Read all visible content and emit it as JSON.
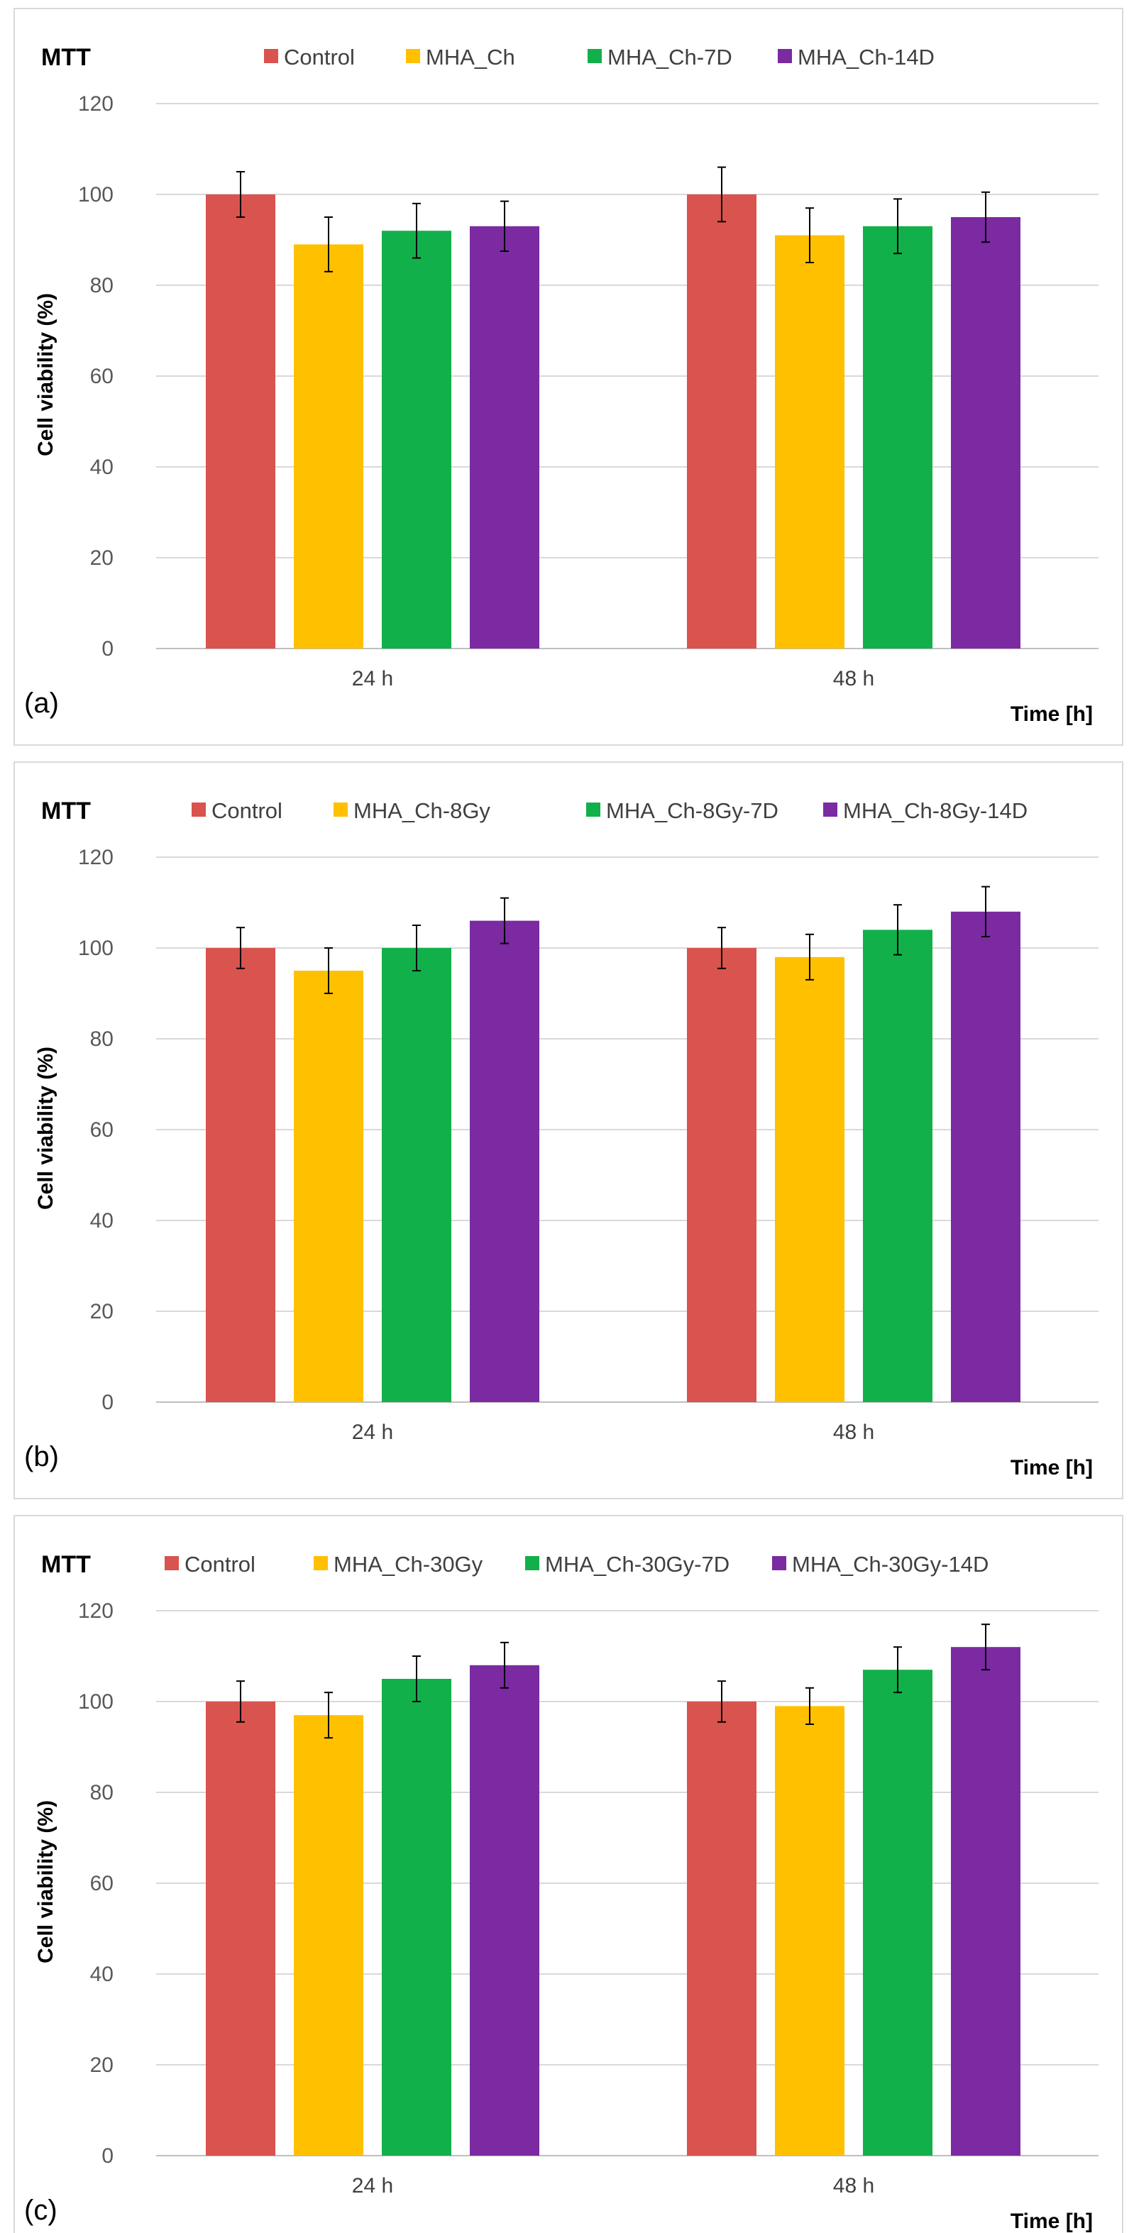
{
  "colors": [
    "#d9534f",
    "#ffc000",
    "#12b04a",
    "#7b2aa2"
  ],
  "chart_data": [
    {
      "type": "bar",
      "panel_label": "(a)",
      "title": "MTT",
      "xlabel": "Time [h]",
      "ylabel": "Cell viability (%)",
      "ylim": [
        0,
        120
      ],
      "yticks": [
        0,
        20,
        40,
        60,
        80,
        100,
        120
      ],
      "grid": true,
      "legend_position": "top",
      "categories": [
        "24 h",
        "48 h"
      ],
      "series": [
        {
          "name": "Control",
          "values": [
            100,
            100
          ],
          "errors": [
            5,
            6
          ]
        },
        {
          "name": "MHA_Ch",
          "values": [
            89,
            91
          ],
          "errors": [
            6,
            6
          ]
        },
        {
          "name": "MHA_Ch-7D",
          "values": [
            92,
            93
          ],
          "errors": [
            6,
            6
          ]
        },
        {
          "name": "MHA_Ch-14D",
          "values": [
            93,
            95
          ],
          "errors": [
            5.5,
            5.5
          ]
        }
      ]
    },
    {
      "type": "bar",
      "panel_label": "(b)",
      "title": "MTT",
      "xlabel": "Time [h]",
      "ylabel": "Cell viability (%)",
      "ylim": [
        0,
        120
      ],
      "yticks": [
        0,
        20,
        40,
        60,
        80,
        100,
        120
      ],
      "grid": true,
      "legend_position": "top",
      "categories": [
        "24 h",
        "48 h"
      ],
      "series": [
        {
          "name": "Control",
          "values": [
            100,
            100
          ],
          "errors": [
            4.5,
            4.5
          ]
        },
        {
          "name": "MHA_Ch-8Gy",
          "values": [
            95,
            98
          ],
          "errors": [
            5,
            5
          ]
        },
        {
          "name": "MHA_Ch-8Gy-7D",
          "values": [
            100,
            104
          ],
          "errors": [
            5,
            5.5
          ]
        },
        {
          "name": "MHA_Ch-8Gy-14D",
          "values": [
            106,
            108
          ],
          "errors": [
            5,
            5.5
          ]
        }
      ]
    },
    {
      "type": "bar",
      "panel_label": "(c)",
      "title": "MTT",
      "xlabel": "Time [h]",
      "ylabel": "Cell viability (%)",
      "ylim": [
        0,
        120
      ],
      "yticks": [
        0,
        20,
        40,
        60,
        80,
        100,
        120
      ],
      "grid": true,
      "legend_position": "top",
      "categories": [
        "24 h",
        "48 h"
      ],
      "series": [
        {
          "name": "Control",
          "values": [
            100,
            100
          ],
          "errors": [
            4.5,
            4.5
          ]
        },
        {
          "name": "MHA_Ch-30Gy",
          "values": [
            97,
            99
          ],
          "errors": [
            5,
            4
          ]
        },
        {
          "name": "MHA_Ch-30Gy-7D",
          "values": [
            105,
            107
          ],
          "errors": [
            5,
            5
          ]
        },
        {
          "name": "MHA_Ch-30Gy-14D",
          "values": [
            108,
            112
          ],
          "errors": [
            5,
            5
          ]
        }
      ]
    }
  ]
}
